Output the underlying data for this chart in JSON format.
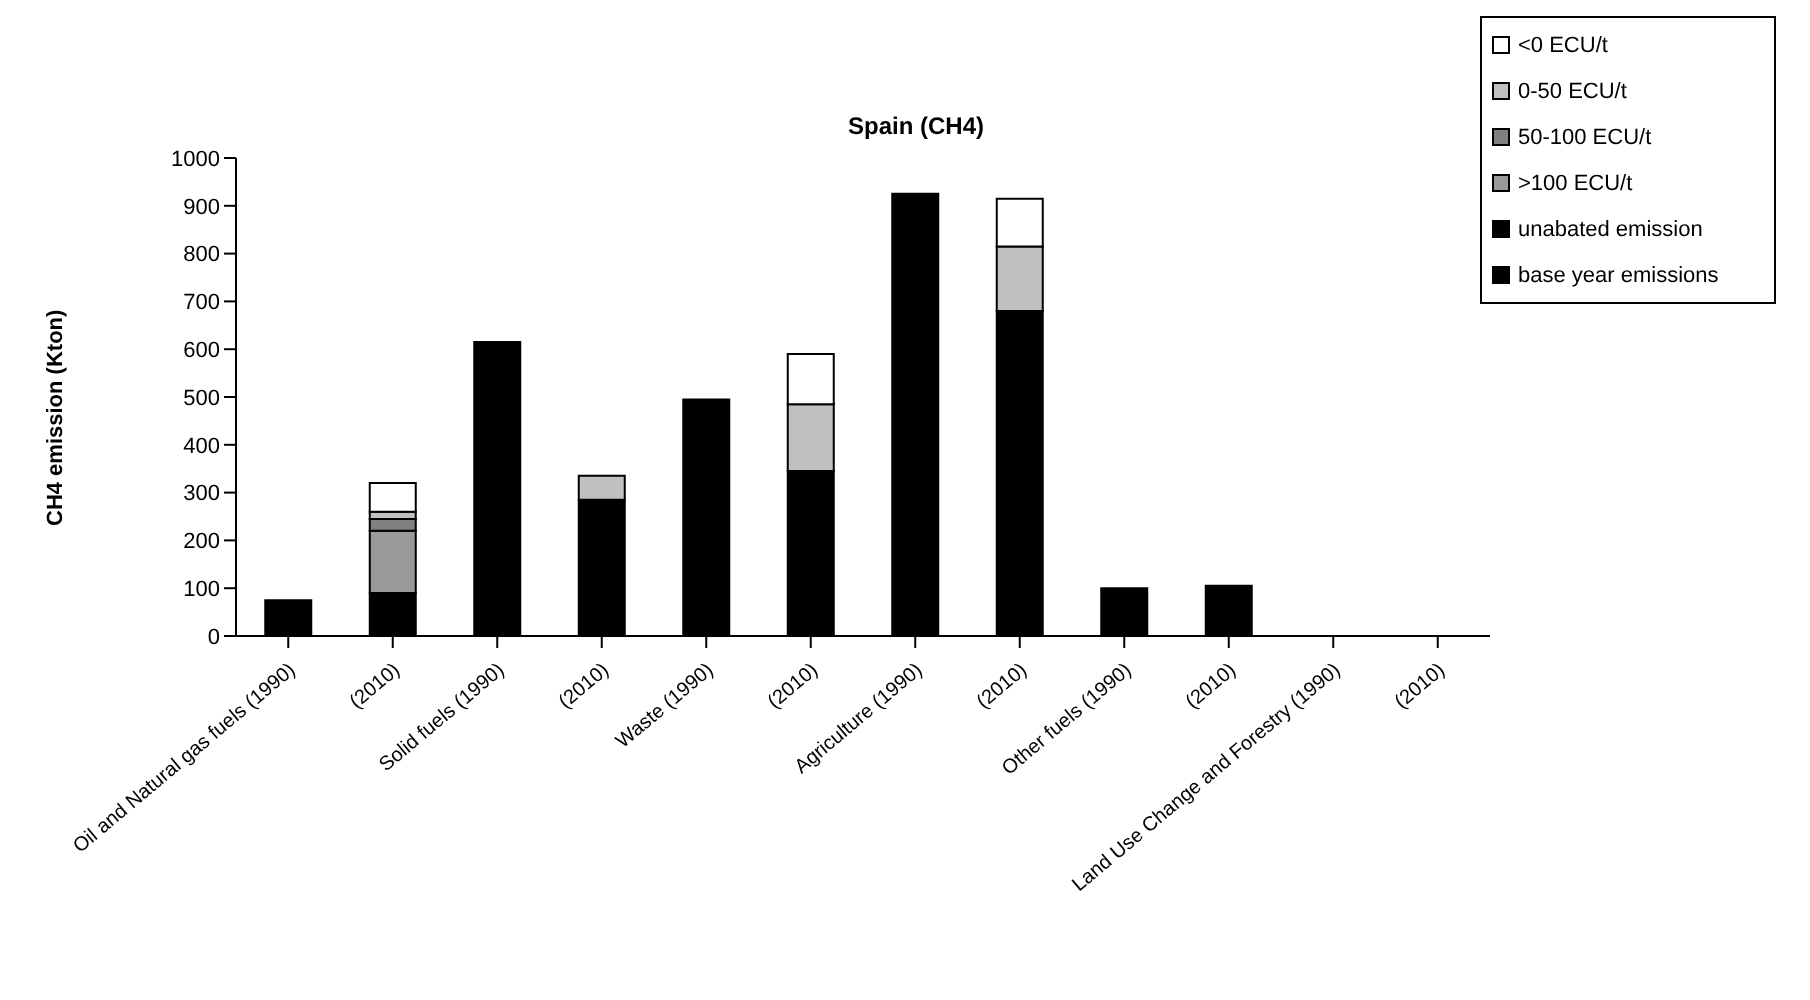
{
  "chart_data": {
    "type": "bar",
    "title": "Spain (CH4)",
    "ylabel": "CH4 emission (Kton)",
    "stacked": true,
    "categories": [
      "Oil and Natural gas fuels (1990)",
      "(2010)",
      "Solid fuels (1990)",
      "(2010)",
      "Waste (1990)",
      "(2010)",
      "Agriculture (1990)",
      "(2010)",
      "Other fuels (1990)",
      "(2010)",
      "Land Use Change and Forestry (1990)",
      "(2010)"
    ],
    "series": [
      {
        "name": "base year emissions",
        "color": "#000000",
        "values": [
          75,
          null,
          615,
          null,
          495,
          null,
          925,
          null,
          100,
          null,
          null,
          null
        ]
      },
      {
        "name": "unabated emission",
        "color": "#000000",
        "values": [
          null,
          90,
          null,
          285,
          null,
          345,
          null,
          680,
          null,
          105,
          null,
          null
        ]
      },
      {
        "name": ">100 ECU/t",
        "color": "#999999",
        "values": [
          null,
          130,
          null,
          null,
          null,
          null,
          null,
          null,
          null,
          null,
          null,
          null
        ]
      },
      {
        "name": "50-100 ECU/t",
        "color": "#808080",
        "values": [
          null,
          25,
          null,
          null,
          null,
          null,
          null,
          null,
          null,
          null,
          null,
          null
        ]
      },
      {
        "name": "0-50 ECU/t",
        "color": "#c0c0c0",
        "values": [
          null,
          15,
          null,
          50,
          null,
          140,
          null,
          135,
          null,
          null,
          null,
          null
        ]
      },
      {
        "name": "<0 ECU/t",
        "color": "#ffffff",
        "values": [
          null,
          60,
          null,
          null,
          null,
          105,
          null,
          100,
          null,
          null,
          null,
          null
        ]
      }
    ],
    "ylim": [
      0,
      1000
    ],
    "yticks": [
      0,
      100,
      200,
      300,
      400,
      500,
      600,
      700,
      800,
      900,
      1000
    ],
    "grid": false,
    "legend": "top right"
  }
}
